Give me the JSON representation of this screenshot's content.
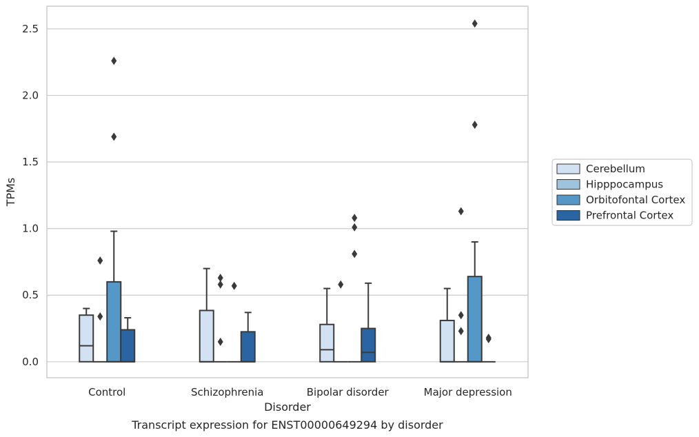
{
  "chart_data": {
    "type": "box",
    "xlabel": "Disorder",
    "ylabel": "TPMs",
    "caption": "Transcript expression for ENST00000649294 by disorder",
    "ylim": [
      -0.12,
      2.67
    ],
    "yticks": [
      "0.0",
      "0.5",
      "1.0",
      "1.5",
      "2.0",
      "2.5"
    ],
    "ytick_values": [
      0.0,
      0.5,
      1.0,
      1.5,
      2.0,
      2.5
    ],
    "grid": "horizontal",
    "legend_placement": "right",
    "categories": [
      "Control",
      "Schizophrenia",
      "Bipolar disorder",
      "Major depression"
    ],
    "series": [
      {
        "name": "Cerebellum",
        "color": "#d3e2f2",
        "boxes": [
          {
            "q1": 0.0,
            "median": 0.12,
            "q3": 0.35,
            "whisker_low": 0.0,
            "whisker_high": 0.4,
            "outliers": []
          },
          {
            "q1": 0.0,
            "median": 0.0,
            "q3": 0.385,
            "whisker_low": 0.0,
            "whisker_high": 0.7,
            "outliers": []
          },
          {
            "q1": 0.0,
            "median": 0.09,
            "q3": 0.28,
            "whisker_low": 0.0,
            "whisker_high": 0.55,
            "outliers": []
          },
          {
            "q1": 0.0,
            "median": 0.0,
            "q3": 0.31,
            "whisker_low": 0.0,
            "whisker_high": 0.55,
            "outliers": []
          }
        ]
      },
      {
        "name": "Hipppocampus",
        "color": "#9ec4dd",
        "boxes": [
          {
            "q1": 0.0,
            "median": 0.0,
            "q3": 0.0,
            "whisker_low": 0.0,
            "whisker_high": 0.0,
            "outliers": [
              0.34,
              0.76
            ]
          },
          {
            "q1": 0.0,
            "median": 0.0,
            "q3": 0.0,
            "whisker_low": 0.0,
            "whisker_high": 0.0,
            "outliers": [
              0.15,
              0.58,
              0.63
            ]
          },
          {
            "q1": 0.0,
            "median": 0.0,
            "q3": 0.0,
            "whisker_low": 0.0,
            "whisker_high": 0.0,
            "outliers": [
              0.58
            ]
          },
          {
            "q1": 0.0,
            "median": 0.0,
            "q3": 0.0,
            "whisker_low": 0.0,
            "whisker_high": 0.0,
            "outliers": [
              0.23,
              0.35,
              1.13
            ]
          }
        ]
      },
      {
        "name": "Orbitofontal Cortex",
        "color": "#5597c6",
        "boxes": [
          {
            "q1": 0.0,
            "median": 0.0,
            "q3": 0.6,
            "whisker_low": 0.0,
            "whisker_high": 0.98,
            "outliers": [
              1.69,
              2.26
            ]
          },
          {
            "q1": 0.0,
            "median": 0.0,
            "q3": 0.0,
            "whisker_low": 0.0,
            "whisker_high": 0.0,
            "outliers": [
              0.57
            ]
          },
          {
            "q1": 0.0,
            "median": 0.0,
            "q3": 0.0,
            "whisker_low": 0.0,
            "whisker_high": 0.0,
            "outliers": [
              0.81,
              1.01,
              1.08
            ]
          },
          {
            "q1": 0.0,
            "median": 0.0,
            "q3": 0.64,
            "whisker_low": 0.0,
            "whisker_high": 0.9,
            "outliers": [
              1.78,
              2.54
            ]
          }
        ]
      },
      {
        "name": "Prefrontal Cortex",
        "color": "#2a64a2",
        "boxes": [
          {
            "q1": 0.0,
            "median": 0.0,
            "q3": 0.24,
            "whisker_low": 0.0,
            "whisker_high": 0.33,
            "outliers": []
          },
          {
            "q1": 0.0,
            "median": 0.0,
            "q3": 0.225,
            "whisker_low": 0.0,
            "whisker_high": 0.37,
            "outliers": []
          },
          {
            "q1": 0.0,
            "median": 0.07,
            "q3": 0.25,
            "whisker_low": 0.0,
            "whisker_high": 0.59,
            "outliers": []
          },
          {
            "q1": 0.0,
            "median": 0.0,
            "q3": 0.0,
            "whisker_low": 0.0,
            "whisker_high": 0.0,
            "outliers": [
              0.17,
              0.18
            ]
          }
        ]
      }
    ]
  }
}
